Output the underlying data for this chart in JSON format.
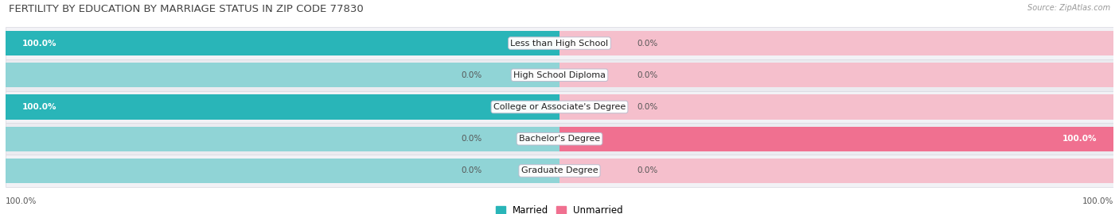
{
  "title": "FERTILITY BY EDUCATION BY MARRIAGE STATUS IN ZIP CODE 77830",
  "source": "Source: ZipAtlas.com",
  "categories": [
    "Less than High School",
    "High School Diploma",
    "College or Associate's Degree",
    "Bachelor's Degree",
    "Graduate Degree"
  ],
  "married_values": [
    100.0,
    0.0,
    100.0,
    0.0,
    0.0
  ],
  "unmarried_values": [
    0.0,
    0.0,
    0.0,
    100.0,
    0.0
  ],
  "married_color": "#29b5b8",
  "married_color_light": "#90d4d6",
  "unmarried_color": "#f07090",
  "unmarried_color_light": "#f5bfcc",
  "row_bg_even": "#f2f2f6",
  "row_bg_odd": "#ebebf0",
  "title_fontsize": 9.5,
  "label_fontsize": 8.0,
  "value_fontsize": 7.5,
  "legend_fontsize": 8.5,
  "source_fontsize": 7.0,
  "background_color": "#ffffff"
}
